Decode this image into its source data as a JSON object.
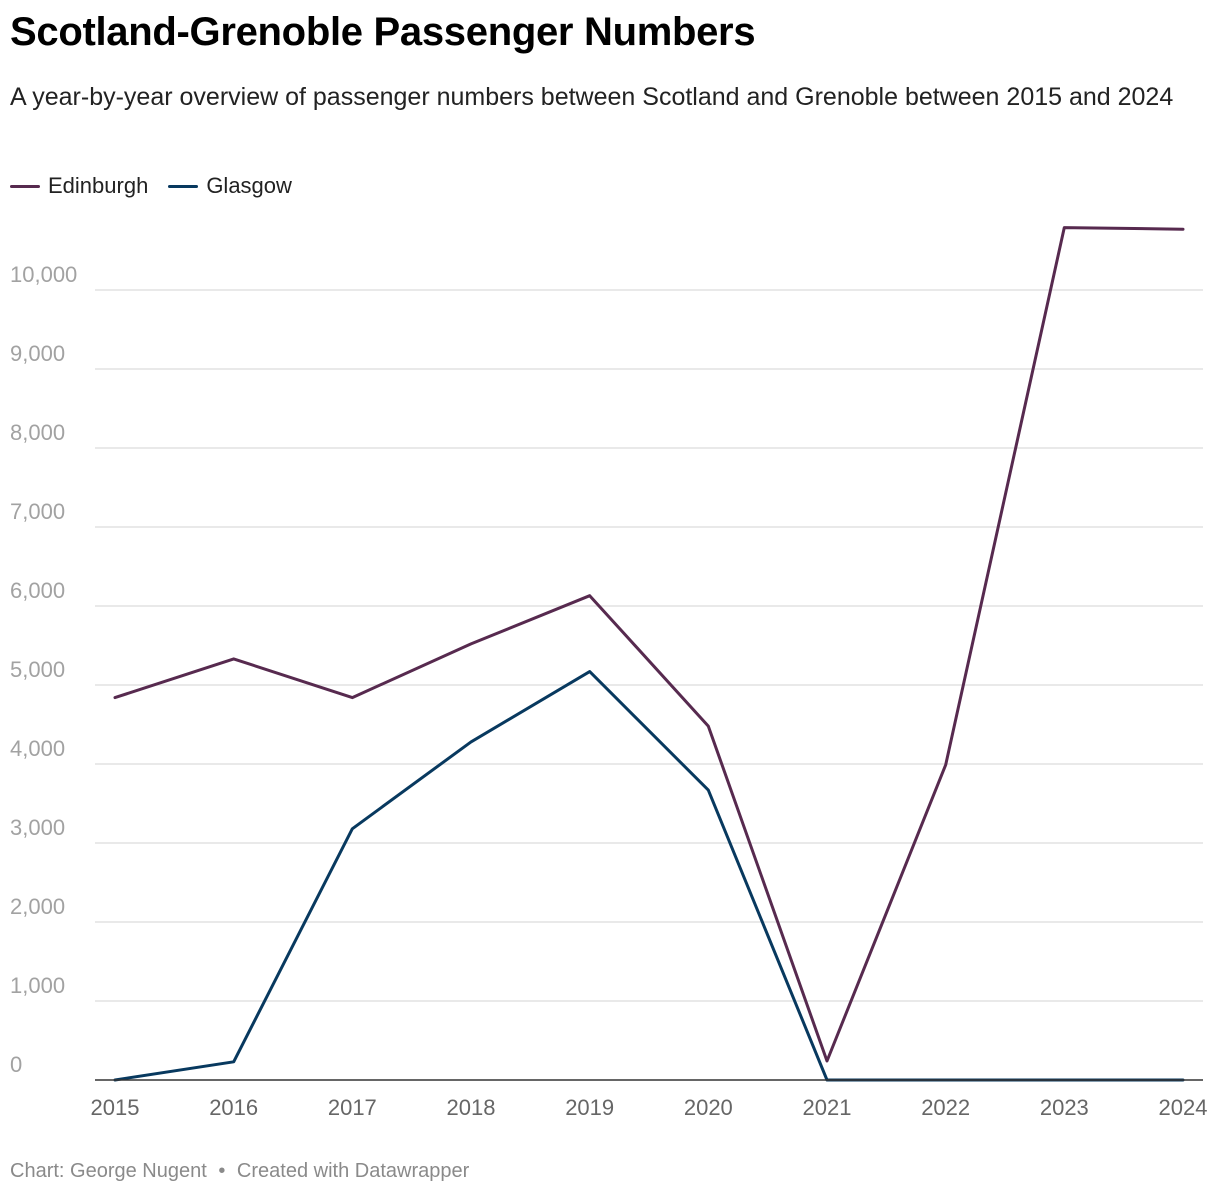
{
  "chart_data": {
    "type": "line",
    "title": "Scotland-Grenoble Passenger Numbers",
    "subtitle": "A year-by-year overview of passenger numbers between Scotland and Grenoble between 2015 and 2024",
    "x": [
      "2015",
      "2016",
      "2017",
      "2018",
      "2019",
      "2020",
      "2021",
      "2022",
      "2023",
      "2024"
    ],
    "series": [
      {
        "name": "Edinburgh",
        "color": "#572a4f",
        "values": [
          4840,
          5330,
          4840,
          5520,
          6130,
          4480,
          240,
          3990,
          10790,
          10770
        ]
      },
      {
        "name": "Glasgow",
        "color": "#08395f",
        "values": [
          0,
          230,
          3180,
          4280,
          5170,
          3670,
          0,
          0,
          0,
          0
        ]
      }
    ],
    "ylim": [
      0,
      10900
    ],
    "yticks": [
      0,
      1000,
      2000,
      3000,
      4000,
      5000,
      6000,
      7000,
      8000,
      9000,
      10000
    ],
    "ytick_labels": [
      "0",
      "1,000",
      "2,000",
      "3,000",
      "4,000",
      "5,000",
      "6,000",
      "7,000",
      "8,000",
      "9,000",
      "10,000"
    ],
    "xlabel": "",
    "ylabel": "",
    "grid": true,
    "legend_position": "top-left"
  },
  "footer": {
    "credit": "Chart: George Nugent",
    "separator": "•",
    "tool": "Created with Datawrapper"
  }
}
